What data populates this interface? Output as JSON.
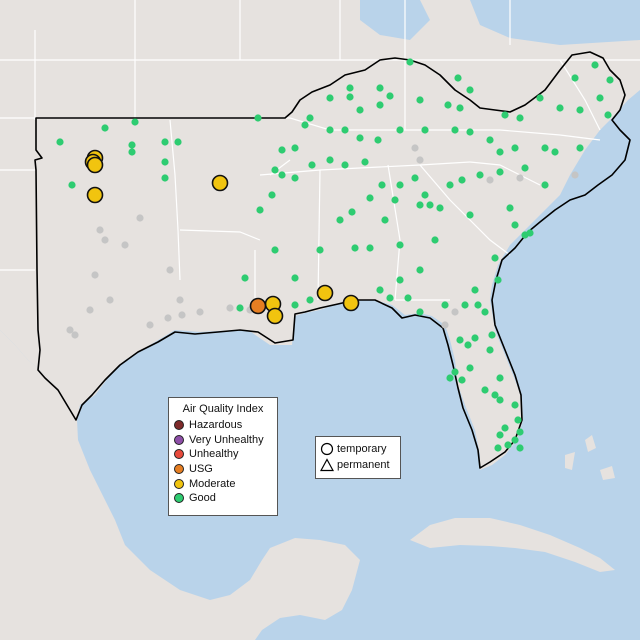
{
  "map": {
    "colors": {
      "water": "#b9d3ea",
      "land": "#e6e2df",
      "border": "#ffffff",
      "region_outline": "#000000",
      "no_data": "#c5c5c5"
    }
  },
  "legend_aqi": {
    "title": "Air Quality Index",
    "items": [
      {
        "label": "Hazardous",
        "color": "#7e2a2a"
      },
      {
        "label": "Very Unhealthy",
        "color": "#8e4fa8"
      },
      {
        "label": "Unhealthy",
        "color": "#e84a3c"
      },
      {
        "label": "USG",
        "color": "#e67e22"
      },
      {
        "label": "Moderate",
        "color": "#f1c40f"
      },
      {
        "label": "Good",
        "color": "#2ecc71"
      }
    ]
  },
  "legend_type": {
    "items": [
      {
        "label": "temporary",
        "shape": "circle"
      },
      {
        "label": "permanent",
        "shape": "triangle"
      }
    ]
  },
  "stations": {
    "moderate_count": 10,
    "usg_count": 1
  }
}
